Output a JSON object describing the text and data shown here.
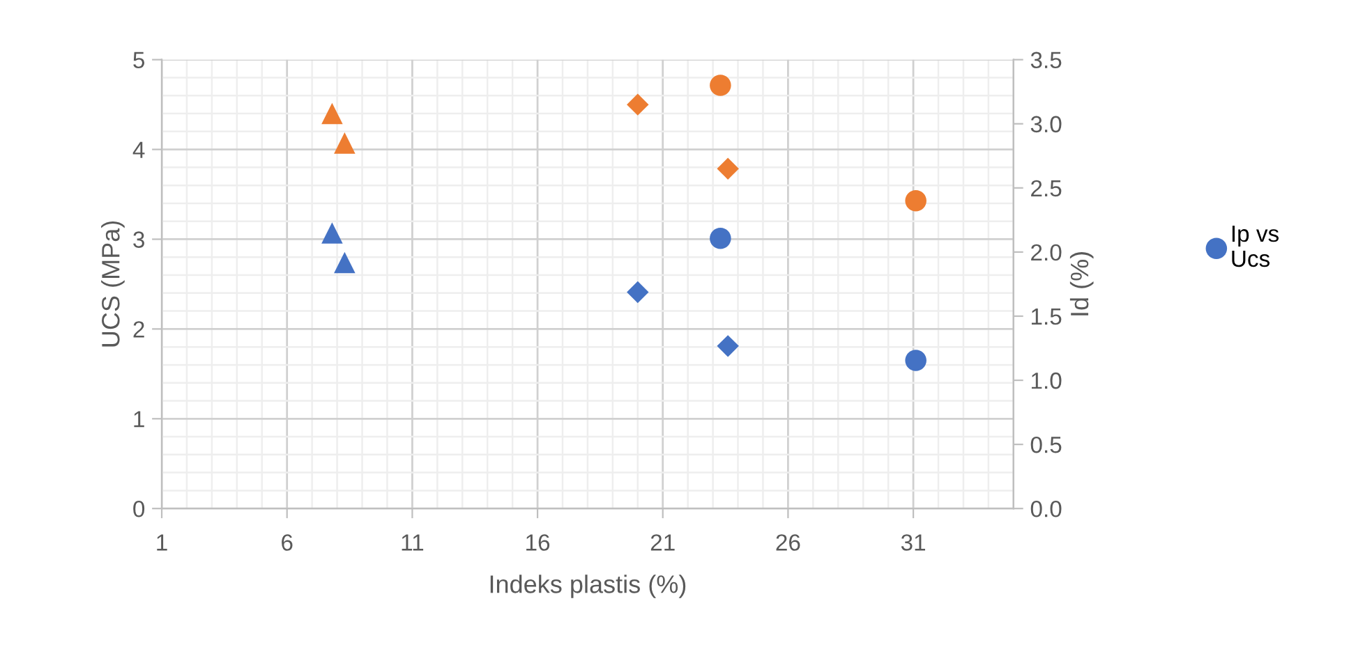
{
  "chart_data": {
    "type": "scatter",
    "xlabel": "Indeks plastis (%)",
    "ylabel": "UCS (MPa)",
    "y2label": "Id (%)",
    "xlim": [
      1,
      35
    ],
    "xticks": [
      1,
      6,
      11,
      16,
      21,
      26,
      31
    ],
    "ylim": [
      0,
      5
    ],
    "yticks": [
      0,
      1,
      2,
      3,
      4,
      5
    ],
    "y2lim": [
      0,
      3.5
    ],
    "y2ticks": [
      {
        "value": 0,
        "label": "0.0"
      },
      {
        "value": 0.5,
        "label": "0.5"
      },
      {
        "value": 1,
        "label": "1.0"
      },
      {
        "value": 1.5,
        "label": "1.5"
      },
      {
        "value": 2,
        "label": "2.0"
      },
      {
        "value": 2.5,
        "label": "2.5"
      },
      {
        "value": 3,
        "label": "3.0"
      },
      {
        "value": 3.5,
        "label": "3.5"
      }
    ],
    "grid": true,
    "legend": "right",
    "series": [
      {
        "color": "#4472c4",
        "marker": "triangle",
        "x": [
          7.8,
          8.3
        ],
        "values": [
          3.07,
          2.74
        ]
      },
      {
        "color": "#4472c4",
        "marker": "diamond",
        "x": [
          20.0,
          23.6
        ],
        "values": [
          2.41,
          1.81
        ]
      },
      {
        "name": "Ip vs\nUcs",
        "color": "#4472c4",
        "marker": "circle",
        "x": [
          23.3,
          31.1
        ],
        "values": [
          3.01,
          1.65
        ]
      },
      {
        "color": "#ed7d31",
        "marker": "triangle",
        "axis": "y2",
        "x": [
          7.8,
          8.3
        ],
        "values": [
          3.08,
          2.85
        ]
      },
      {
        "color": "#ed7d31",
        "marker": "diamond",
        "axis": "y2",
        "x": [
          20.0,
          23.6
        ],
        "values": [
          3.15,
          2.65
        ]
      },
      {
        "color": "#ed7d31",
        "marker": "circle",
        "axis": "y2",
        "x": [
          23.3,
          31.1
        ],
        "values": [
          3.3,
          2.4
        ]
      }
    ]
  }
}
